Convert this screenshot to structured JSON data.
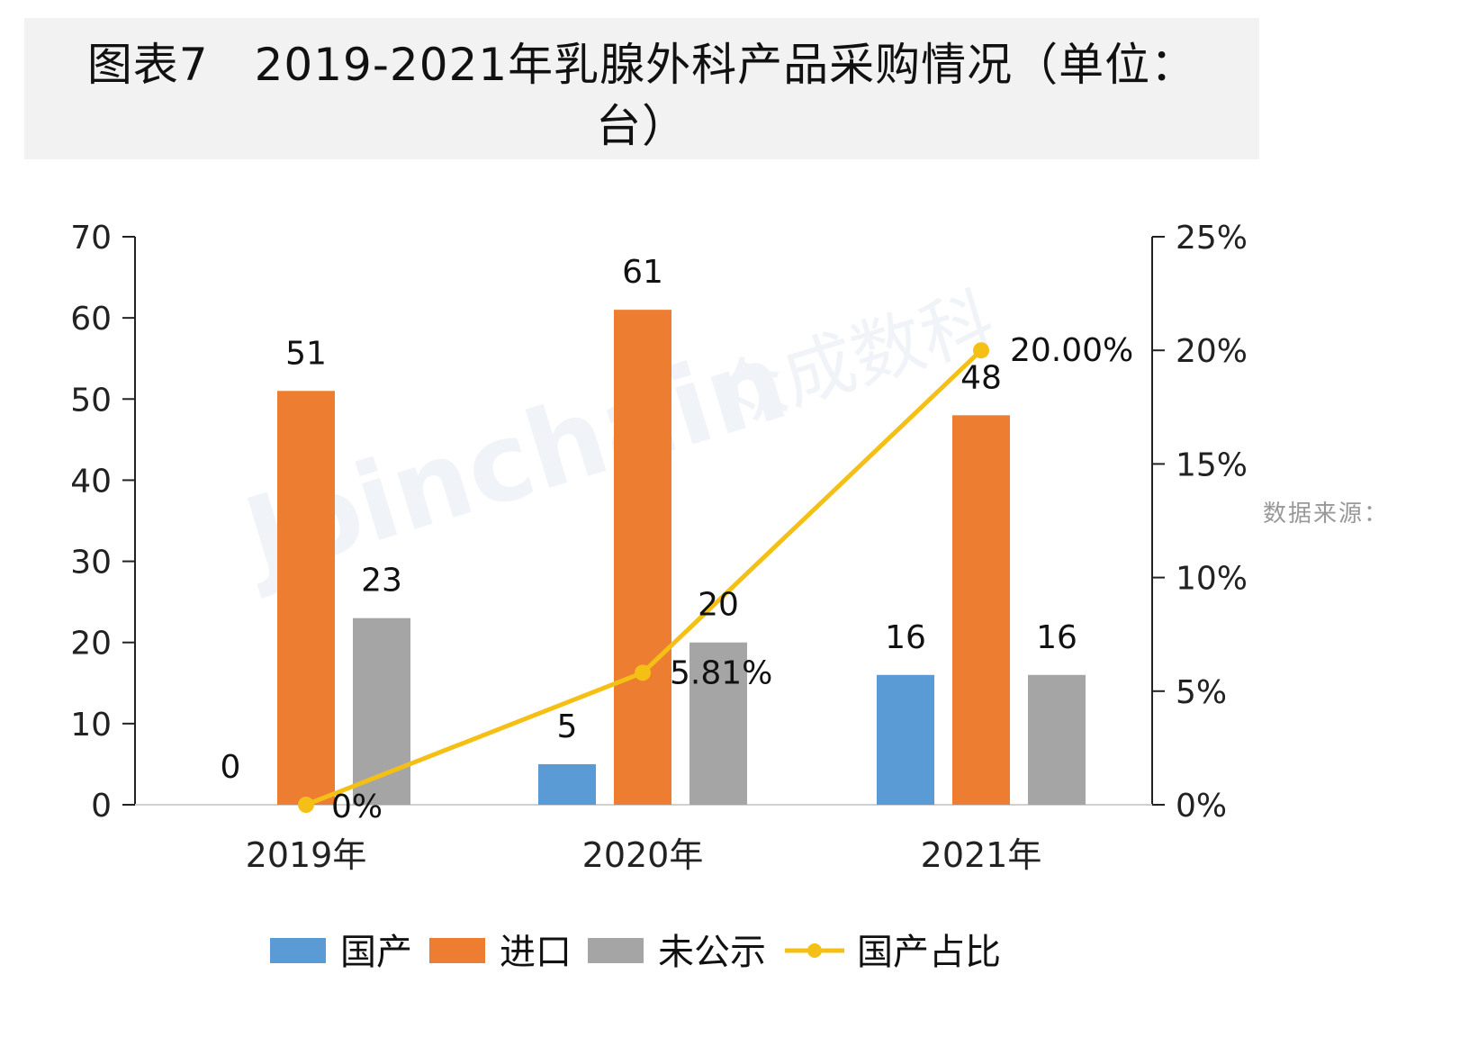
{
  "title": {
    "line1": "图表7　2019-2021年乳腺外科产品采购情况（单位：",
    "line2": "台）"
  },
  "source_note": "数据来源：",
  "colors": {
    "domestic": "#5b9bd5",
    "import": "#ed7d31",
    "undisclosed": "#a5a5a5",
    "ratio": "#f5c016",
    "title_bg": "#f2f2f2"
  },
  "chart_data": {
    "type": "bar",
    "title": "图表7　2019-2021年乳腺外科产品采购情况（单位：台）",
    "categories": [
      "2019年",
      "2020年",
      "2021年"
    ],
    "series": [
      {
        "name": "国产",
        "type": "bar",
        "axis": "left",
        "values": [
          0,
          5,
          16
        ],
        "labels": [
          "0",
          "5",
          "16"
        ]
      },
      {
        "name": "进口",
        "type": "bar",
        "axis": "left",
        "values": [
          51,
          61,
          48
        ],
        "labels": [
          "51",
          "61",
          "48"
        ]
      },
      {
        "name": "未公示",
        "type": "bar",
        "axis": "left",
        "values": [
          23,
          20,
          16
        ],
        "labels": [
          "23",
          "20",
          "16"
        ]
      },
      {
        "name": "国产占比",
        "type": "line",
        "axis": "right",
        "values": [
          0,
          5.81,
          20.0
        ],
        "labels": [
          "0%",
          "5.81%",
          "20.00%"
        ]
      }
    ],
    "y_left": {
      "min": 0,
      "max": 70,
      "step": 10,
      "ticks": [
        "0",
        "10",
        "20",
        "30",
        "40",
        "50",
        "60",
        "70"
      ]
    },
    "y_right": {
      "min": 0,
      "max": 25,
      "step": 5,
      "ticks": [
        "0%",
        "5%",
        "10%",
        "15%",
        "20%",
        "25%"
      ]
    },
    "legend": {
      "position": "bottom",
      "entries": [
        "国产",
        "进口",
        "未公示",
        "国产占比"
      ]
    },
    "grid": false,
    "watermark": "Joinchain 众成数科"
  }
}
